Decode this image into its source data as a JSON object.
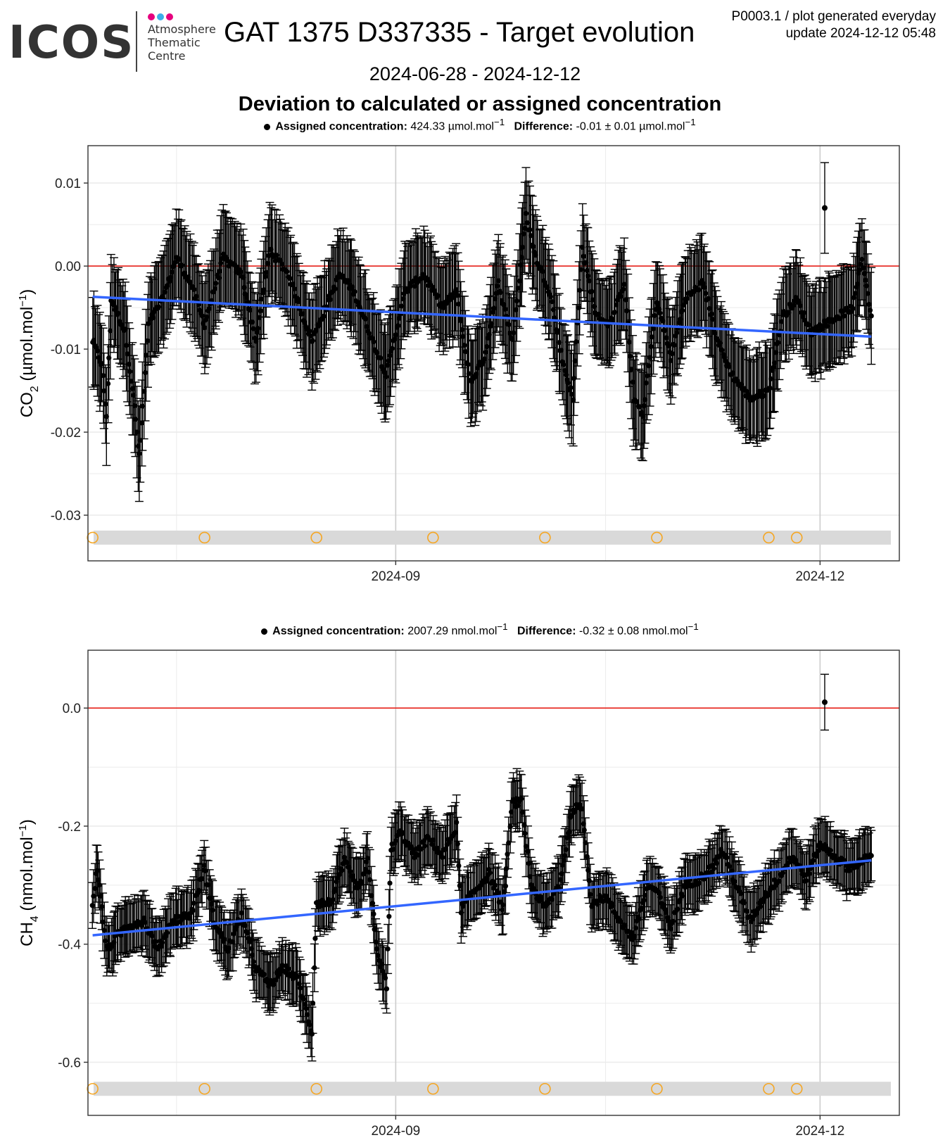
{
  "header": {
    "logo_text": "ICOS",
    "logo_subtitle": [
      "Atmosphere",
      "Thematic",
      "Centre"
    ],
    "logo_dot_colors": [
      "#e6007e",
      "#3daee9",
      "#e6007e"
    ],
    "title": "GAT 1375 D337335 - Target evolution",
    "note_line1": "P0003.1 / plot generated everyday",
    "note_line2": "update  2024-12-12 05:48",
    "date_range": "2024-06-28 - 2024-12-12",
    "section_title": "Deviation to calculated or assigned concentration"
  },
  "colors": {
    "points": "#000000",
    "zero_line": "#e8231b",
    "trend_line": "#3366ff",
    "markers": "#f5a623",
    "band": "#d9d9d9",
    "grid_major": "#cccccc",
    "grid_minor": "#ebebeb"
  },
  "chart_data": [
    {
      "type": "scatter",
      "panel": "co2",
      "ylabel_main": "CO",
      "ylabel_sub": "2",
      "ylabel_unit": "(µmol.mol",
      "ylabel_sup": "−1",
      "ylabel_close": ")",
      "subtitle": {
        "label1": "Assigned concentration:",
        "value1": "424.33 µmol.mol",
        "sup1": "−1",
        "label2": "Difference:",
        "value2": "-0.01 ± 0.01 µmol.mol",
        "sup2": "−1"
      },
      "x_range": [
        "2024-06-27",
        "2024-12-18"
      ],
      "x_ticks": [
        "2024-09-01",
        "2024-12-01"
      ],
      "x_tick_labels": [
        "2024-09",
        "2024-12"
      ],
      "ylim": [
        -0.0355,
        0.0145
      ],
      "y_ticks": [
        0.01,
        0.0,
        -0.01,
        -0.02,
        -0.03
      ],
      "y_tick_labels": [
        "0.01",
        "0.00",
        "-0.01",
        "-0.02",
        "-0.03"
      ],
      "reference_line": 0,
      "trend": {
        "start": [
          "2024-06-28",
          -0.0037
        ],
        "end": [
          "2024-12-12",
          -0.0085
        ]
      },
      "marker_band_y": -0.0327,
      "marker_dates": [
        "2024-06-28",
        "2024-07-22",
        "2024-08-15",
        "2024-09-09",
        "2024-10-03",
        "2024-10-27",
        "2024-11-20",
        "2024-11-26"
      ],
      "error_bar": 0.0052,
      "anchors": [
        [
          "2024-06-28",
          -0.009
        ],
        [
          "2024-06-30",
          -0.012
        ],
        [
          "2024-07-01",
          -0.018
        ],
        [
          "2024-07-02",
          -0.004
        ],
        [
          "2024-07-05",
          -0.008
        ],
        [
          "2024-07-07",
          -0.017
        ],
        [
          "2024-07-08",
          -0.023
        ],
        [
          "2024-07-10",
          -0.007
        ],
        [
          "2024-07-13",
          -0.004
        ],
        [
          "2024-07-16",
          0.001
        ],
        [
          "2024-07-19",
          -0.002
        ],
        [
          "2024-07-22",
          -0.007
        ],
        [
          "2024-07-26",
          0.001
        ],
        [
          "2024-07-30",
          -0.001
        ],
        [
          "2024-08-02",
          -0.009
        ],
        [
          "2024-08-05",
          0.002
        ],
        [
          "2024-08-09",
          -0.001
        ],
        [
          "2024-08-14",
          -0.009
        ],
        [
          "2024-08-17",
          -0.005
        ],
        [
          "2024-08-20",
          -0.001
        ],
        [
          "2024-08-23",
          -0.003
        ],
        [
          "2024-08-27",
          -0.009
        ],
        [
          "2024-08-30",
          -0.013
        ],
        [
          "2024-09-03",
          -0.003
        ],
        [
          "2024-09-07",
          -0.001
        ],
        [
          "2024-09-11",
          -0.005
        ],
        [
          "2024-09-14",
          -0.003
        ],
        [
          "2024-09-17",
          -0.014
        ],
        [
          "2024-09-20",
          -0.011
        ],
        [
          "2024-09-23",
          -0.002
        ],
        [
          "2024-09-26",
          -0.009
        ],
        [
          "2024-09-29",
          0.006
        ],
        [
          "2024-10-01",
          0.001
        ],
        [
          "2024-10-04",
          -0.003
        ],
        [
          "2024-10-07",
          -0.012
        ],
        [
          "2024-10-09",
          -0.016
        ],
        [
          "2024-10-11",
          0.002
        ],
        [
          "2024-10-14",
          -0.006
        ],
        [
          "2024-10-17",
          -0.007
        ],
        [
          "2024-10-20",
          -0.002
        ],
        [
          "2024-10-22",
          -0.016
        ],
        [
          "2024-10-24",
          -0.018
        ],
        [
          "2024-10-27",
          -0.004
        ],
        [
          "2024-10-30",
          -0.011
        ],
        [
          "2024-11-02",
          -0.004
        ],
        [
          "2024-11-06",
          -0.002
        ],
        [
          "2024-11-09",
          -0.009
        ],
        [
          "2024-11-12",
          -0.013
        ],
        [
          "2024-11-16",
          -0.016
        ],
        [
          "2024-11-20",
          -0.015
        ],
        [
          "2024-11-23",
          -0.006
        ],
        [
          "2024-11-26",
          -0.004
        ],
        [
          "2024-11-29",
          -0.008
        ],
        [
          "2024-12-02",
          -0.007
        ],
        [
          "2024-12-05",
          -0.006
        ],
        [
          "2024-12-08",
          -0.005
        ],
        [
          "2024-12-10",
          0.001
        ],
        [
          "2024-12-12",
          -0.006
        ]
      ],
      "outliers": [
        [
          "2024-12-02",
          0.007
        ]
      ]
    },
    {
      "type": "scatter",
      "panel": "ch4",
      "ylabel_main": "CH",
      "ylabel_sub": "4",
      "ylabel_unit": "(nmol.mol",
      "ylabel_sup": "−1",
      "ylabel_close": ")",
      "subtitle": {
        "label1": "Assigned concentration:",
        "value1": "2007.29 nmol.mol",
        "sup1": "−1",
        "label2": "Difference:",
        "value2": "-0.32 ± 0.08 nmol.mol",
        "sup2": "−1"
      },
      "x_range": [
        "2024-06-27",
        "2024-12-18"
      ],
      "x_ticks": [
        "2024-09-01",
        "2024-12-01"
      ],
      "x_tick_labels": [
        "2024-09",
        "2024-12"
      ],
      "ylim": [
        -0.69,
        0.098
      ],
      "y_ticks": [
        0.0,
        -0.2,
        -0.4,
        -0.6
      ],
      "y_tick_labels": [
        "0.0",
        "-0.2",
        "-0.4",
        "-0.6"
      ],
      "reference_line": 0,
      "trend": {
        "start": [
          "2024-06-28",
          -0.385
        ],
        "end": [
          "2024-12-12",
          -0.258
        ]
      },
      "marker_band_y": -0.645,
      "marker_dates": [
        "2024-06-28",
        "2024-07-22",
        "2024-08-15",
        "2024-09-09",
        "2024-10-03",
        "2024-10-27",
        "2024-11-20",
        "2024-11-26"
      ],
      "error_bar": 0.045,
      "anchors": [
        [
          "2024-06-28",
          -0.33
        ],
        [
          "2024-06-29",
          -0.27
        ],
        [
          "2024-07-01",
          -0.41
        ],
        [
          "2024-07-05",
          -0.37
        ],
        [
          "2024-07-09",
          -0.36
        ],
        [
          "2024-07-12",
          -0.41
        ],
        [
          "2024-07-15",
          -0.36
        ],
        [
          "2024-07-19",
          -0.35
        ],
        [
          "2024-07-22",
          -0.27
        ],
        [
          "2024-07-24",
          -0.36
        ],
        [
          "2024-07-27",
          -0.41
        ],
        [
          "2024-07-30",
          -0.35
        ],
        [
          "2024-08-02",
          -0.44
        ],
        [
          "2024-08-05",
          -0.47
        ],
        [
          "2024-08-08",
          -0.44
        ],
        [
          "2024-08-11",
          -0.46
        ],
        [
          "2024-08-14",
          -0.55
        ],
        [
          "2024-08-15",
          -0.33
        ],
        [
          "2024-08-18",
          -0.33
        ],
        [
          "2024-08-21",
          -0.26
        ],
        [
          "2024-08-24",
          -0.31
        ],
        [
          "2024-08-26",
          -0.26
        ],
        [
          "2024-08-28",
          -0.41
        ],
        [
          "2024-08-30",
          -0.47
        ],
        [
          "2024-08-31",
          -0.24
        ],
        [
          "2024-09-02",
          -0.21
        ],
        [
          "2024-09-05",
          -0.25
        ],
        [
          "2024-09-08",
          -0.22
        ],
        [
          "2024-09-11",
          -0.25
        ],
        [
          "2024-09-14",
          -0.2
        ],
        [
          "2024-09-15",
          -0.34
        ],
        [
          "2024-09-18",
          -0.31
        ],
        [
          "2024-09-21",
          -0.28
        ],
        [
          "2024-09-24",
          -0.34
        ],
        [
          "2024-09-26",
          -0.16
        ],
        [
          "2024-09-28",
          -0.16
        ],
        [
          "2024-09-30",
          -0.3
        ],
        [
          "2024-10-03",
          -0.34
        ],
        [
          "2024-10-06",
          -0.3
        ],
        [
          "2024-10-09",
          -0.17
        ],
        [
          "2024-10-11",
          -0.17
        ],
        [
          "2024-10-13",
          -0.33
        ],
        [
          "2024-10-16",
          -0.32
        ],
        [
          "2024-10-19",
          -0.36
        ],
        [
          "2024-10-22",
          -0.39
        ],
        [
          "2024-10-25",
          -0.3
        ],
        [
          "2024-10-27",
          -0.31
        ],
        [
          "2024-10-30",
          -0.37
        ],
        [
          "2024-11-02",
          -0.3
        ],
        [
          "2024-11-05",
          -0.29
        ],
        [
          "2024-11-08",
          -0.27
        ],
        [
          "2024-11-10",
          -0.24
        ],
        [
          "2024-11-13",
          -0.3
        ],
        [
          "2024-11-16",
          -0.36
        ],
        [
          "2024-11-19",
          -0.32
        ],
        [
          "2024-11-22",
          -0.29
        ],
        [
          "2024-11-25",
          -0.25
        ],
        [
          "2024-11-28",
          -0.29
        ],
        [
          "2024-12-01",
          -0.23
        ],
        [
          "2024-12-04",
          -0.25
        ],
        [
          "2024-12-07",
          -0.27
        ],
        [
          "2024-12-10",
          -0.26
        ],
        [
          "2024-12-12",
          -0.25
        ]
      ],
      "outliers": [
        [
          "2024-12-02",
          0.01
        ]
      ]
    }
  ]
}
